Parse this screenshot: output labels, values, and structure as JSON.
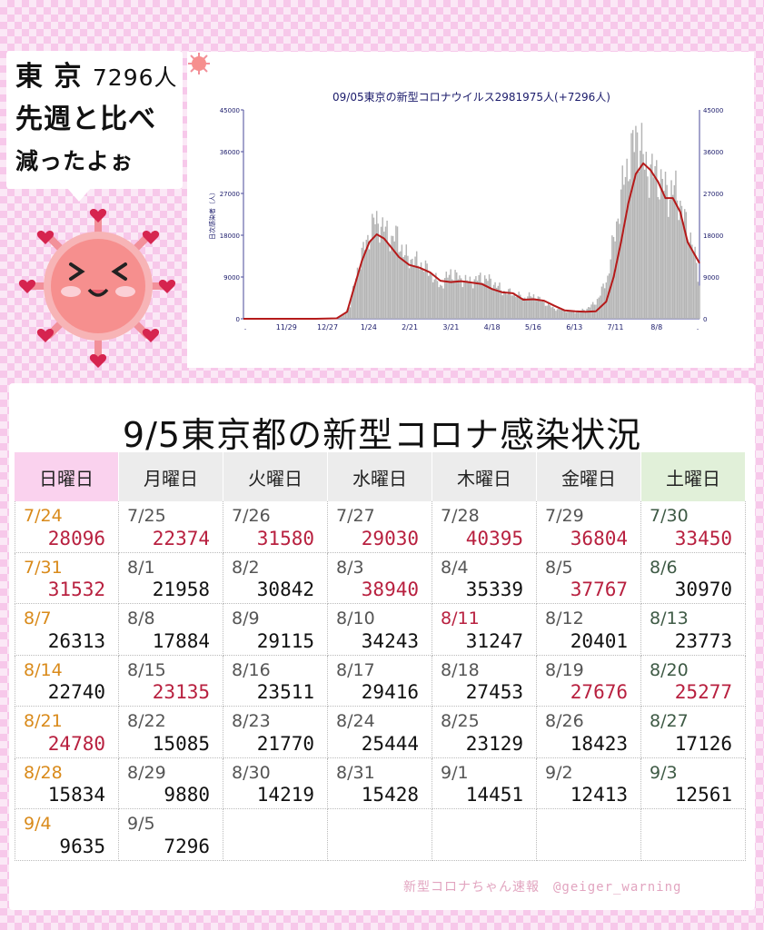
{
  "speech": {
    "line1_prefix": "東 京",
    "line1_number": "7296人",
    "line2": "先週と比べ",
    "line3": "減ったよぉ"
  },
  "chart_data": {
    "type": "line",
    "title": "09/05東京の新型コロナウイルス2981975人(+7296人)",
    "ylabel": "日次感染者（人）",
    "ylim": [
      0,
      45000
    ],
    "yticks": [
      0,
      9000,
      18000,
      27000,
      36000,
      45000
    ],
    "xtick_labels": [
      ".",
      "11/29",
      "12/27",
      "1/24",
      "2/21",
      "3/21",
      "4/18",
      "5/16",
      "6/13",
      "7/11",
      "8/8",
      "."
    ],
    "start_date": "2021-11-01",
    "bar_color": "#b5b5b5",
    "line_color": "#b51a1a",
    "series": [
      {
        "kind": "bars",
        "x": [
          "2021-11-01",
          "2021-11-15",
          "2021-11-29",
          "2021-12-13",
          "2021-12-27",
          "2022-01-03",
          "2022-01-08",
          "2022-01-12",
          "2022-01-16",
          "2022-01-20",
          "2022-01-24",
          "2022-01-28",
          "2022-02-01",
          "2022-02-05",
          "2022-02-09",
          "2022-02-13",
          "2022-02-17",
          "2022-02-21",
          "2022-02-28",
          "2022-03-07",
          "2022-03-14",
          "2022-03-21",
          "2022-03-28",
          "2022-04-04",
          "2022-04-11",
          "2022-04-18",
          "2022-04-25",
          "2022-05-02",
          "2022-05-09",
          "2022-05-16",
          "2022-05-23",
          "2022-05-30",
          "2022-06-06",
          "2022-06-13",
          "2022-06-20",
          "2022-06-27",
          "2022-07-01",
          "2022-07-05",
          "2022-07-09",
          "2022-07-13",
          "2022-07-17",
          "2022-07-21",
          "2022-07-24",
          "2022-07-27",
          "2022-07-30",
          "2022-08-03",
          "2022-08-07",
          "2022-08-11",
          "2022-08-15",
          "2022-08-19",
          "2022-08-23",
          "2022-08-27",
          "2022-08-31",
          "2022-09-05"
        ],
        "values": [
          30,
          20,
          25,
          30,
          80,
          100,
          900,
          3000,
          9000,
          14000,
          17000,
          21000,
          20500,
          19000,
          17000,
          18000,
          14000,
          13000,
          12000,
          10000,
          7000,
          10000,
          8500,
          8000,
          9000,
          8000,
          6000,
          5500,
          4500,
          5000,
          3500,
          2200,
          1800,
          1500,
          2000,
          3500,
          6000,
          9000,
          17000,
          24000,
          32000,
          35000,
          40000,
          38000,
          33000,
          32000,
          31000,
          29000,
          27000,
          28000,
          25000,
          20000,
          17000,
          7296
        ]
      },
      {
        "kind": "line",
        "name": "7-day average",
        "x": [
          "2021-11-01",
          "2021-12-20",
          "2022-01-03",
          "2022-01-10",
          "2022-01-15",
          "2022-01-20",
          "2022-01-25",
          "2022-01-30",
          "2022-02-04",
          "2022-02-09",
          "2022-02-14",
          "2022-02-21",
          "2022-02-28",
          "2022-03-07",
          "2022-03-14",
          "2022-03-21",
          "2022-03-28",
          "2022-04-04",
          "2022-04-11",
          "2022-04-18",
          "2022-04-25",
          "2022-05-02",
          "2022-05-09",
          "2022-05-16",
          "2022-05-23",
          "2022-05-30",
          "2022-06-06",
          "2022-06-13",
          "2022-06-20",
          "2022-06-27",
          "2022-07-04",
          "2022-07-09",
          "2022-07-14",
          "2022-07-19",
          "2022-07-24",
          "2022-07-29",
          "2022-08-03",
          "2022-08-08",
          "2022-08-13",
          "2022-08-18",
          "2022-08-23",
          "2022-08-28",
          "2022-09-05"
        ],
        "values": [
          0,
          0,
          100,
          1500,
          7000,
          12500,
          16500,
          18200,
          17300,
          15300,
          13300,
          11600,
          11000,
          10000,
          8200,
          7900,
          8100,
          7800,
          7500,
          6400,
          5700,
          5500,
          4100,
          4200,
          3900,
          2800,
          1800,
          1600,
          1500,
          1600,
          3700,
          9000,
          16500,
          25000,
          31200,
          33500,
          32000,
          29500,
          26000,
          26000,
          23000,
          16500,
          12000
        ]
      }
    ]
  },
  "table": {
    "title": "9/5東京都の新型コロナ感染状況",
    "headers": [
      "日曜日",
      "月曜日",
      "火曜日",
      "水曜日",
      "木曜日",
      "金曜日",
      "土曜日"
    ],
    "rows": [
      [
        {
          "d": "7/24",
          "v": "28096",
          "hi": true
        },
        {
          "d": "7/25",
          "v": "22374",
          "hi": true
        },
        {
          "d": "7/26",
          "v": "31580",
          "hi": true
        },
        {
          "d": "7/27",
          "v": "29030",
          "hi": true
        },
        {
          "d": "7/28",
          "v": "40395",
          "hi": true
        },
        {
          "d": "7/29",
          "v": "36804",
          "hi": true
        },
        {
          "d": "7/30",
          "v": "33450",
          "hi": true
        }
      ],
      [
        {
          "d": "7/31",
          "v": "31532",
          "hi": true
        },
        {
          "d": "8/1",
          "v": "21958",
          "hi": false
        },
        {
          "d": "8/2",
          "v": "30842",
          "hi": false
        },
        {
          "d": "8/3",
          "v": "38940",
          "hi": true
        },
        {
          "d": "8/4",
          "v": "35339",
          "hi": false
        },
        {
          "d": "8/5",
          "v": "37767",
          "hi": true
        },
        {
          "d": "8/6",
          "v": "30970",
          "hi": false
        }
      ],
      [
        {
          "d": "8/7",
          "v": "26313",
          "hi": false
        },
        {
          "d": "8/8",
          "v": "17884",
          "hi": false
        },
        {
          "d": "8/9",
          "v": "29115",
          "hi": false
        },
        {
          "d": "8/10",
          "v": "34243",
          "hi": false
        },
        {
          "d": "8/11",
          "v": "31247",
          "hi": false,
          "holiday": true
        },
        {
          "d": "8/12",
          "v": "20401",
          "hi": false
        },
        {
          "d": "8/13",
          "v": "23773",
          "hi": false
        }
      ],
      [
        {
          "d": "8/14",
          "v": "22740",
          "hi": false
        },
        {
          "d": "8/15",
          "v": "23135",
          "hi": true
        },
        {
          "d": "8/16",
          "v": "23511",
          "hi": false
        },
        {
          "d": "8/17",
          "v": "29416",
          "hi": false
        },
        {
          "d": "8/18",
          "v": "27453",
          "hi": false
        },
        {
          "d": "8/19",
          "v": "27676",
          "hi": true
        },
        {
          "d": "8/20",
          "v": "25277",
          "hi": true
        }
      ],
      [
        {
          "d": "8/21",
          "v": "24780",
          "hi": true
        },
        {
          "d": "8/22",
          "v": "15085",
          "hi": false
        },
        {
          "d": "8/23",
          "v": "21770",
          "hi": false
        },
        {
          "d": "8/24",
          "v": "25444",
          "hi": false
        },
        {
          "d": "8/25",
          "v": "23129",
          "hi": false
        },
        {
          "d": "8/26",
          "v": "18423",
          "hi": false
        },
        {
          "d": "8/27",
          "v": "17126",
          "hi": false
        }
      ],
      [
        {
          "d": "8/28",
          "v": "15834",
          "hi": false
        },
        {
          "d": "8/29",
          "v": "9880",
          "hi": false
        },
        {
          "d": "8/30",
          "v": "14219",
          "hi": false
        },
        {
          "d": "8/31",
          "v": "15428",
          "hi": false
        },
        {
          "d": "9/1",
          "v": "14451",
          "hi": false
        },
        {
          "d": "9/2",
          "v": "12413",
          "hi": false
        },
        {
          "d": "9/3",
          "v": "12561",
          "hi": false
        }
      ],
      [
        {
          "d": "9/4",
          "v": "9635",
          "hi": false
        },
        {
          "d": "9/5",
          "v": "7296",
          "hi": false
        },
        {
          "d": "",
          "v": ""
        },
        {
          "d": "",
          "v": ""
        },
        {
          "d": "",
          "v": ""
        },
        {
          "d": "",
          "v": ""
        },
        {
          "d": "",
          "v": ""
        }
      ]
    ]
  },
  "footer": "新型コロナちゃん速報　@geiger_warning"
}
